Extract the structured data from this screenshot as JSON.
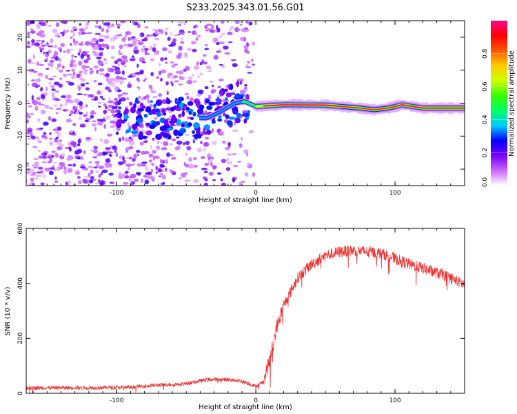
{
  "title": "S233.2025.343.01.56.G01",
  "chart_data": [
    {
      "type": "heatmap",
      "name": "spectrogram",
      "xlabel": "Height of straight line (km)",
      "ylabel": "Frequency (Hz)",
      "xlim": [
        -165,
        150
      ],
      "ylim": [
        -25,
        25
      ],
      "xticks": [
        -100,
        0,
        100
      ],
      "xtick_labels": [
        "-100",
        "0",
        "100"
      ],
      "yticks": [
        -20,
        -10,
        0,
        10,
        20
      ],
      "ytick_labels": [
        "-20",
        "-10",
        "0",
        "10",
        "20"
      ],
      "trace_center_hz": [
        [
          -35,
          -4.5
        ],
        [
          -25,
          -2.5
        ],
        [
          -15,
          0.0
        ],
        [
          -8,
          0.5
        ],
        [
          0,
          -1.0
        ],
        [
          20,
          -0.5
        ],
        [
          50,
          -0.6
        ],
        [
          75,
          -1.5
        ],
        [
          85,
          -2.0
        ],
        [
          95,
          -1.5
        ],
        [
          105,
          -0.5
        ],
        [
          120,
          -1.5
        ],
        [
          150,
          -1.5
        ]
      ],
      "colorbar": {
        "label": "Normalized spectral amplitude",
        "range": [
          0.0,
          1.0
        ],
        "ticks": [
          0.0,
          0.2,
          0.4,
          0.6,
          0.8
        ],
        "tick_labels": [
          "0.0",
          "0.2",
          "0.4",
          "0.6",
          "0.8"
        ],
        "colors": [
          "#ffffff",
          "#cc66ff",
          "#7700ff",
          "#0000ff",
          "#00ccff",
          "#00ff66",
          "#33ff00",
          "#ccff00",
          "#ffcc00",
          "#ff5500",
          "#ff0000",
          "#ff0088"
        ]
      }
    },
    {
      "type": "line",
      "name": "snr",
      "xlabel": "Height of straight line (km)",
      "ylabel": "SNR (10 * v/v)",
      "xlim": [
        -165,
        150
      ],
      "ylim": [
        0,
        600
      ],
      "xticks": [
        -100,
        0,
        100
      ],
      "xtick_labels": [
        "-100",
        "0",
        "100"
      ],
      "yticks": [
        0,
        200,
        400,
        600
      ],
      "ytick_labels": [
        "0",
        "200",
        "400",
        "600"
      ],
      "color": "#ee3333",
      "envelope": [
        [
          -165,
          20
        ],
        [
          -120,
          20
        ],
        [
          -90,
          22
        ],
        [
          -70,
          30
        ],
        [
          -50,
          35
        ],
        [
          -35,
          50
        ],
        [
          -20,
          50
        ],
        [
          -10,
          45
        ],
        [
          0,
          25
        ],
        [
          5,
          40
        ],
        [
          10,
          120
        ],
        [
          15,
          240
        ],
        [
          20,
          320
        ],
        [
          30,
          420
        ],
        [
          40,
          470
        ],
        [
          50,
          500
        ],
        [
          60,
          515
        ],
        [
          70,
          520
        ],
        [
          80,
          515
        ],
        [
          90,
          510
        ],
        [
          100,
          490
        ],
        [
          110,
          470
        ],
        [
          120,
          455
        ],
        [
          135,
          430
        ],
        [
          150,
          395
        ]
      ]
    }
  ]
}
